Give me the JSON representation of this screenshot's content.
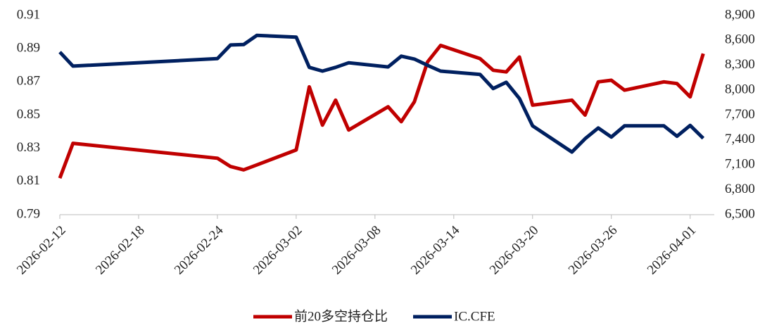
{
  "chart_data": {
    "type": "line",
    "x": [
      "2026-02-12",
      "2026-02-13",
      "2026-02-24",
      "2026-02-25",
      "2026-02-26",
      "2026-02-27",
      "2026-03-02",
      "2026-03-03",
      "2026-03-04",
      "2026-03-05",
      "2026-03-06",
      "2026-03-09",
      "2026-03-10",
      "2026-03-11",
      "2026-03-12",
      "2026-03-13",
      "2026-03-16",
      "2026-03-17",
      "2026-03-18",
      "2026-03-19",
      "2026-03-20",
      "2026-03-23",
      "2026-03-24",
      "2026-03-25",
      "2026-03-26",
      "2026-03-27",
      "2026-03-30",
      "2026-03-31",
      "2026-04-01",
      "2026-04-02"
    ],
    "xlim": [
      "2026-02-12",
      "2026-04-03"
    ],
    "xticks": [
      "2026-02-12",
      "2026-02-18",
      "2026-02-24",
      "2026-03-02",
      "2026-03-08",
      "2026-03-14",
      "2026-03-20",
      "2026-03-26",
      "2026-04-01"
    ],
    "ylim": [
      0.79,
      0.91
    ],
    "yticks": [
      0.79,
      0.81,
      0.83,
      0.85,
      0.87,
      0.89,
      0.91
    ],
    "y2lim": [
      6500,
      8900
    ],
    "y2ticks": [
      {
        "value": 6500,
        "label": "6,500"
      },
      {
        "value": 6800,
        "label": "6,800"
      },
      {
        "value": 7100,
        "label": "7,100"
      },
      {
        "value": 7400,
        "label": "7,400"
      },
      {
        "value": 7700,
        "label": "7,700"
      },
      {
        "value": 8000,
        "label": "8,000"
      },
      {
        "value": 8300,
        "label": "8,300"
      },
      {
        "value": 8600,
        "label": "8,600"
      },
      {
        "value": 8900,
        "label": "8,900"
      }
    ],
    "legend": "bottom",
    "series": [
      {
        "name": "前20多空持仓比",
        "color": "#c00000",
        "values": [
          0.812,
          0.833,
          0.824,
          0.819,
          0.817,
          0.82,
          0.829,
          0.867,
          0.844,
          0.859,
          0.841,
          0.855,
          0.846,
          0.858,
          0.882,
          0.892,
          0.884,
          0.877,
          0.876,
          0.885,
          0.856,
          0.859,
          0.85,
          0.87,
          0.871,
          0.865,
          0.87,
          0.869,
          0.861,
          0.887
        ]
      },
      {
        "name": "IC.CFE",
        "color": "#002060",
        "axis": "y2",
        "values": [
          8460,
          8290,
          8380,
          8545,
          8550,
          8660,
          8640,
          8275,
          8230,
          8275,
          8330,
          8280,
          8410,
          8375,
          8300,
          8230,
          8190,
          8020,
          8095,
          7900,
          7570,
          7255,
          7415,
          7545,
          7435,
          7570,
          7570,
          7445,
          7575,
          7420
        ]
      }
    ]
  }
}
